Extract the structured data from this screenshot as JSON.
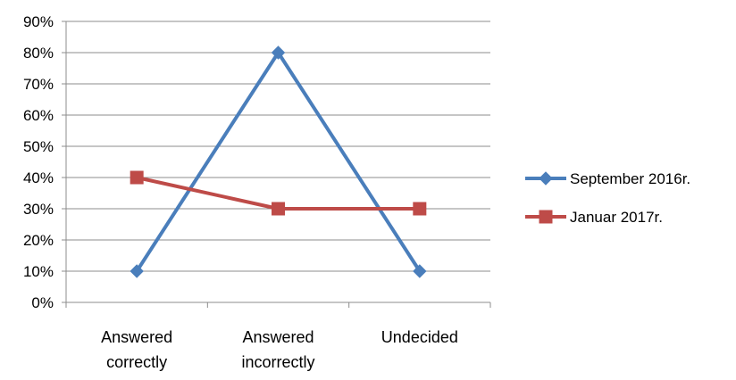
{
  "chart_data": {
    "type": "line",
    "categories": [
      [
        "Answered",
        "correctly"
      ],
      [
        "Answered",
        "incorrectly"
      ],
      [
        "Undecided"
      ]
    ],
    "series": [
      {
        "name": "September 2016r.",
        "values": [
          10,
          80,
          10
        ],
        "color": "#4a7ebb",
        "marker": "diamond"
      },
      {
        "name": "Januar 2017r.",
        "values": [
          40,
          30,
          30
        ],
        "color": "#be4b48",
        "marker": "square"
      }
    ],
    "ylim": [
      0,
      90
    ],
    "yticks": [
      "0%",
      "10%",
      "20%",
      "30%",
      "40%",
      "50%",
      "60%",
      "70%",
      "80%",
      "90%"
    ],
    "grid": true,
    "legend": "right"
  }
}
